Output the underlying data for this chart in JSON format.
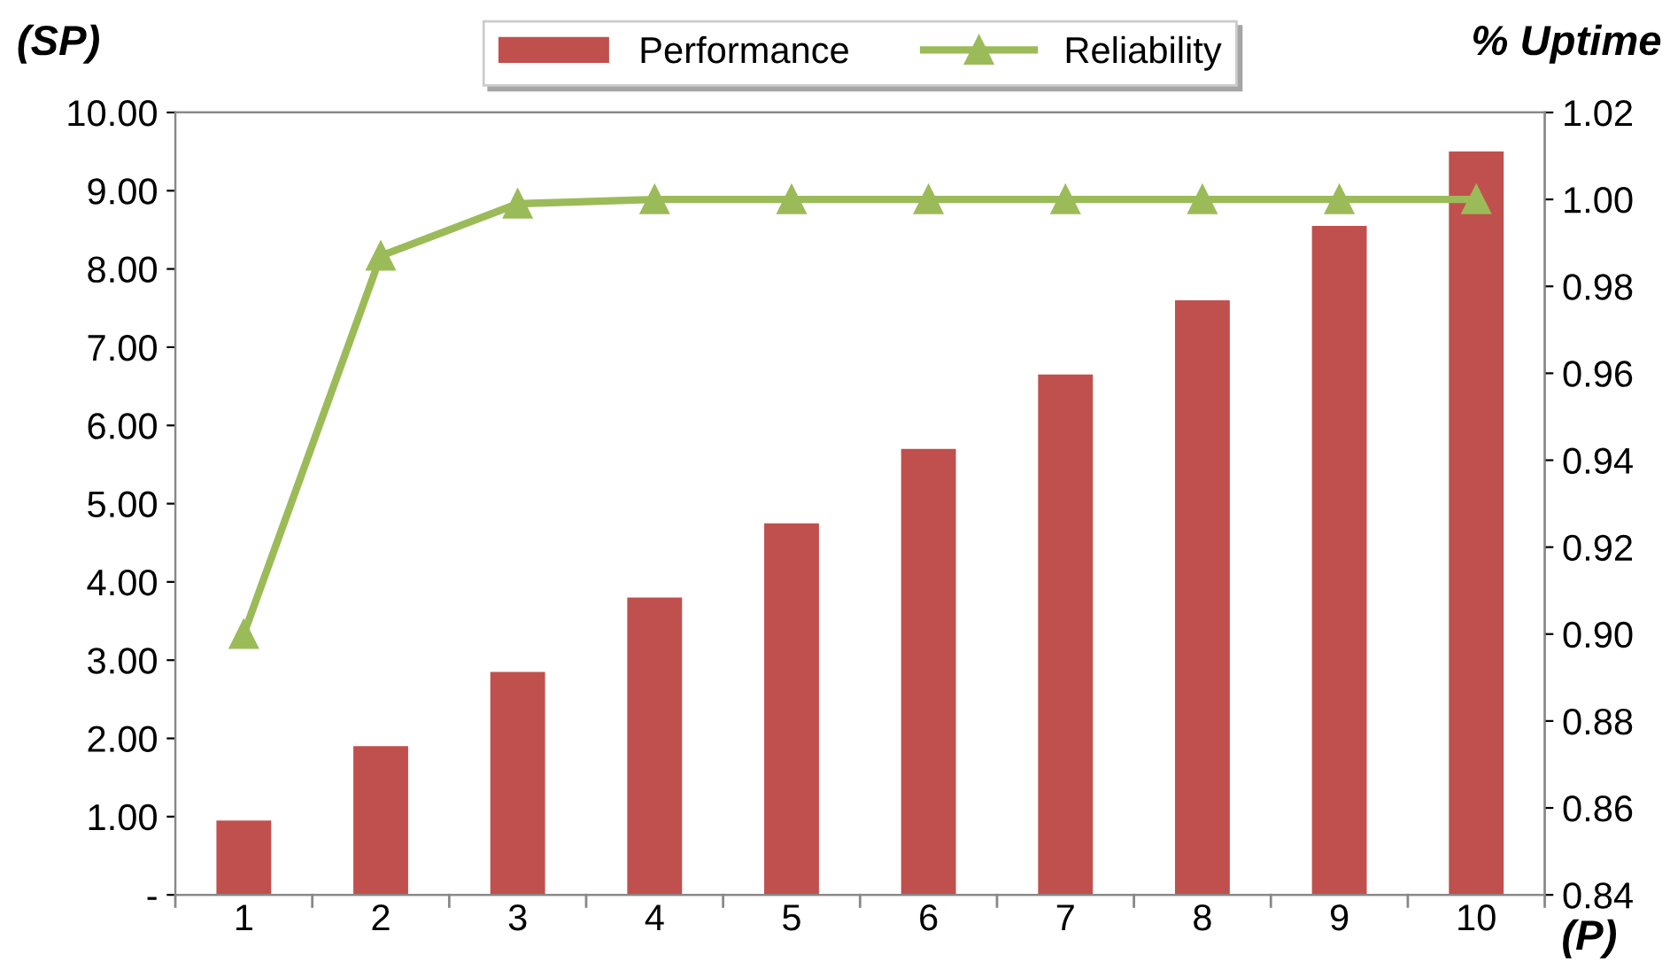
{
  "chart_data": {
    "type": "bar",
    "xlabel": "(P)",
    "ylabel": "(SP)",
    "y2label": "% Uptime",
    "categories": [
      "1",
      "2",
      "3",
      "4",
      "5",
      "6",
      "7",
      "8",
      "9",
      "10"
    ],
    "series": [
      {
        "name": "Performance",
        "color": "#c0504d",
        "values": [
          0.95,
          1.9,
          2.85,
          3.8,
          4.75,
          5.7,
          6.65,
          7.6,
          8.55,
          9.5
        ]
      },
      {
        "name": "Reliability",
        "type": "line",
        "axis": "y2",
        "color": "#9bbb59",
        "marker": "triangle",
        "values": [
          0.9,
          0.987,
          0.999,
          1.0,
          1.0,
          1.0,
          1.0,
          1.0,
          1.0,
          1.0
        ]
      }
    ],
    "ylim": [
      0,
      10
    ],
    "yticks": [
      {
        "value": 0,
        "label": "-"
      },
      {
        "value": 1,
        "label": "1.00"
      },
      {
        "value": 2,
        "label": "2.00"
      },
      {
        "value": 3,
        "label": "3.00"
      },
      {
        "value": 4,
        "label": "4.00"
      },
      {
        "value": 5,
        "label": "5.00"
      },
      {
        "value": 6,
        "label": "6.00"
      },
      {
        "value": 7,
        "label": "7.00"
      },
      {
        "value": 8,
        "label": "8.00"
      },
      {
        "value": 9,
        "label": "9.00"
      },
      {
        "value": 10,
        "label": "10.00"
      }
    ],
    "y2lim": [
      0.84,
      1.02
    ],
    "y2ticks": [
      0.84,
      0.86,
      0.88,
      {
        "value": 0.9,
        "label": "0.90"
      },
      0.92,
      0.94,
      0.96,
      0.98,
      {
        "value": 1.0,
        "label": "1.00"
      },
      1.02
    ],
    "legend": "top",
    "grid": false
  }
}
